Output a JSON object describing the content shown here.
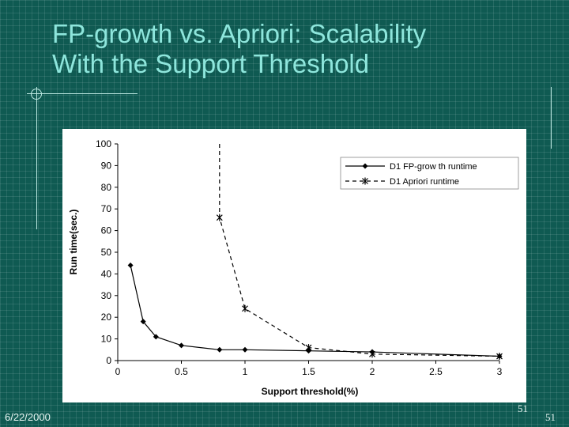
{
  "slide": {
    "title_line1": "FP-growth vs. Apriori: Scalability",
    "title_line2": "With the Support Threshold",
    "date": "6/22/2000",
    "slide_number": "51",
    "slide_number_corner": "51"
  },
  "colors": {
    "background": "#0f5a52",
    "title": "#8ee6dc",
    "series": "#000000"
  },
  "chart_data": {
    "type": "line",
    "xlabel": "Support threshold(%)",
    "ylabel": "Run time(sec.)",
    "xlim": [
      0,
      3
    ],
    "ylim": [
      0,
      100
    ],
    "xticks": [
      "0",
      "0.5",
      "1",
      "1.5",
      "2",
      "2.5",
      "3"
    ],
    "yticks": [
      "0",
      "10",
      "20",
      "30",
      "40",
      "50",
      "60",
      "70",
      "80",
      "90",
      "100"
    ],
    "grid": false,
    "legend_position": "top-right",
    "series": [
      {
        "name": "D1 FP-grow th runtime",
        "style": "solid",
        "marker": "diamond",
        "x": [
          0.1,
          0.2,
          0.3,
          0.5,
          0.8,
          1,
          1.5,
          2,
          3
        ],
        "y": [
          44,
          18,
          11,
          7,
          5,
          5,
          4.5,
          4,
          2
        ]
      },
      {
        "name": "D1 Apriori runtime",
        "style": "dashed",
        "marker": "asterisk",
        "x": [
          0.8,
          1,
          1.5,
          2,
          3
        ],
        "y": [
          66,
          24,
          6,
          3,
          2
        ]
      }
    ]
  }
}
